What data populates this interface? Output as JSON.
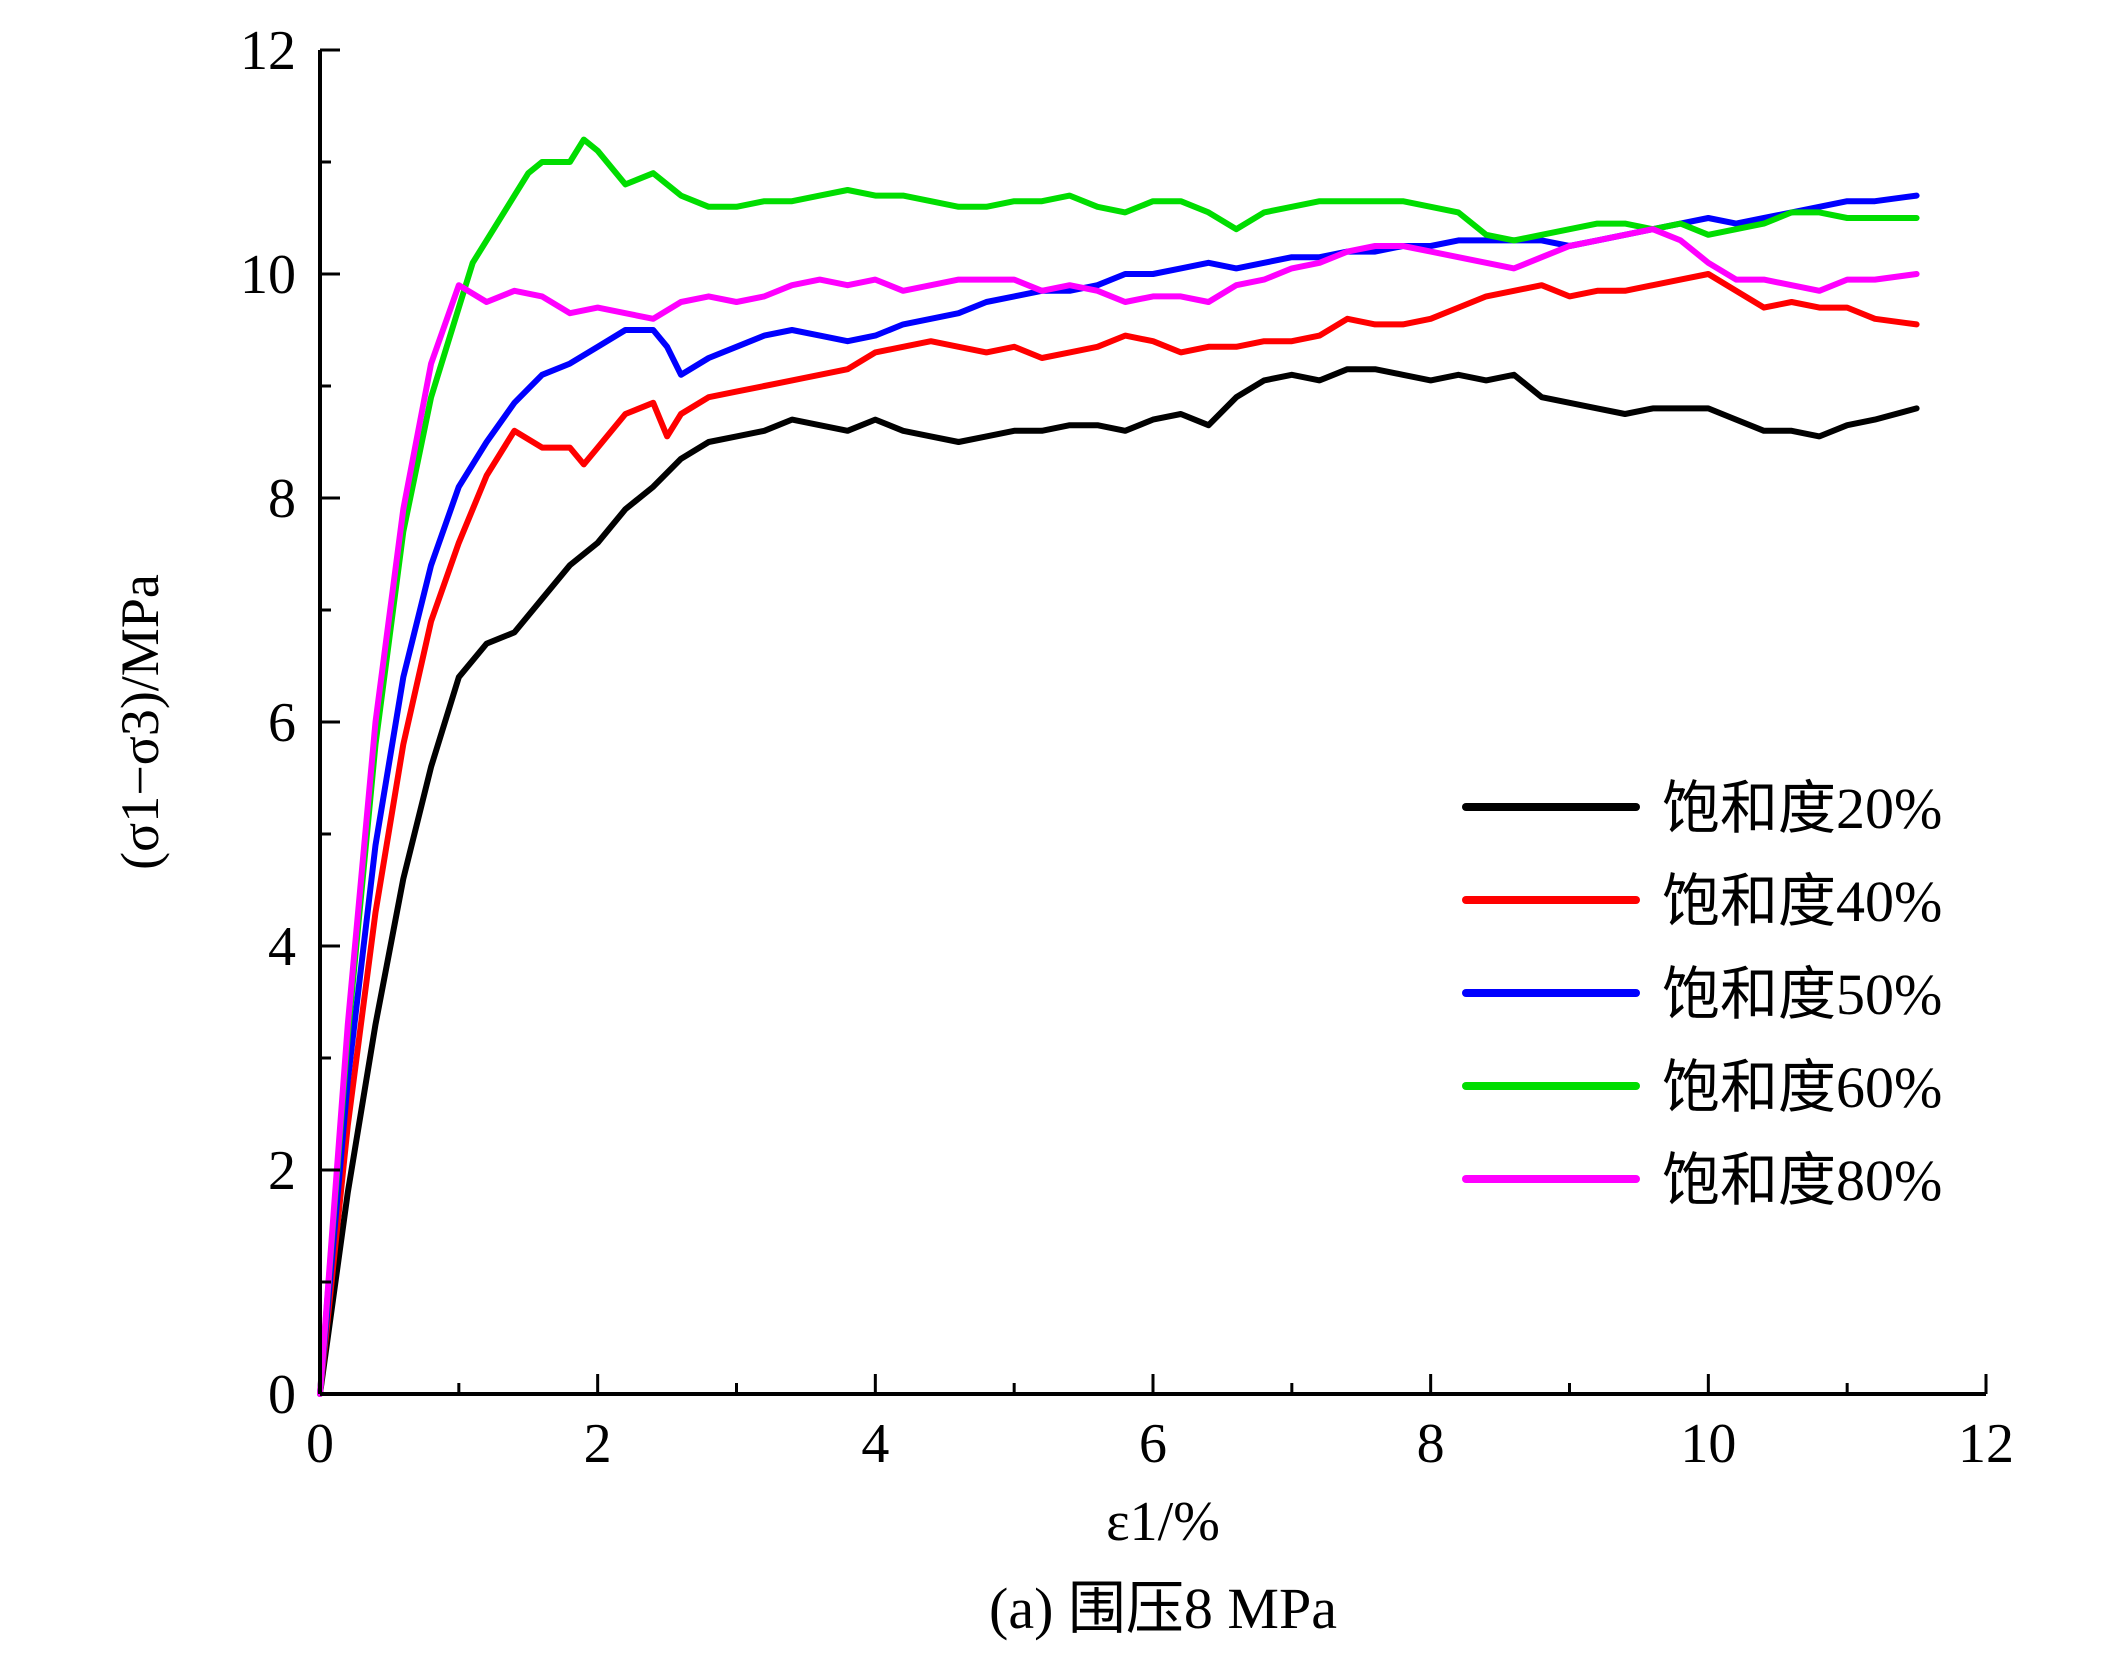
{
  "caption": "(a) 围压8 MPa",
  "chart_data": {
    "type": "line",
    "xlabel": "ε1/%",
    "ylabel": "(σ1−σ3)/MPa",
    "xlim": [
      0,
      12
    ],
    "ylim": [
      0,
      12
    ],
    "xticks": [
      0,
      2,
      4,
      6,
      8,
      10,
      12
    ],
    "yticks": [
      0,
      2,
      4,
      6,
      8,
      10,
      12
    ],
    "grid": false,
    "legend_position": "right",
    "series": [
      {
        "name": "饱和度20%",
        "color": "#000000",
        "x": [
          0,
          0.2,
          0.4,
          0.6,
          0.8,
          1.0,
          1.2,
          1.4,
          1.6,
          1.8,
          2.0,
          2.2,
          2.4,
          2.6,
          2.8,
          3.0,
          3.2,
          3.4,
          3.6,
          3.8,
          4.0,
          4.2,
          4.4,
          4.6,
          4.8,
          5.0,
          5.2,
          5.4,
          5.6,
          5.8,
          6.0,
          6.2,
          6.4,
          6.6,
          6.8,
          7.0,
          7.2,
          7.4,
          7.6,
          7.8,
          8.0,
          8.2,
          8.4,
          8.6,
          8.8,
          9.0,
          9.2,
          9.4,
          9.6,
          9.8,
          10.0,
          10.2,
          10.4,
          10.6,
          10.8,
          11.0,
          11.2,
          11.5
        ],
        "y": [
          0,
          1.8,
          3.3,
          4.6,
          5.6,
          6.4,
          6.7,
          6.8,
          7.1,
          7.4,
          7.6,
          7.9,
          8.1,
          8.35,
          8.5,
          8.55,
          8.6,
          8.7,
          8.65,
          8.6,
          8.7,
          8.6,
          8.55,
          8.5,
          8.55,
          8.6,
          8.6,
          8.65,
          8.65,
          8.6,
          8.7,
          8.75,
          8.65,
          8.9,
          9.05,
          9.1,
          9.05,
          9.15,
          9.15,
          9.1,
          9.05,
          9.1,
          9.05,
          9.1,
          8.9,
          8.85,
          8.8,
          8.75,
          8.8,
          8.8,
          8.8,
          8.7,
          8.6,
          8.6,
          8.55,
          8.65,
          8.7,
          8.8
        ]
      },
      {
        "name": "饱和度40%",
        "color": "#ff0000",
        "x": [
          0,
          0.2,
          0.4,
          0.6,
          0.8,
          1.0,
          1.2,
          1.4,
          1.6,
          1.8,
          1.9,
          2.0,
          2.2,
          2.4,
          2.5,
          2.6,
          2.8,
          3.0,
          3.2,
          3.4,
          3.6,
          3.8,
          4.0,
          4.2,
          4.4,
          4.6,
          4.8,
          5.0,
          5.2,
          5.4,
          5.6,
          5.8,
          6.0,
          6.2,
          6.4,
          6.6,
          6.8,
          7.0,
          7.2,
          7.4,
          7.6,
          7.8,
          8.0,
          8.2,
          8.4,
          8.6,
          8.8,
          9.0,
          9.2,
          9.4,
          9.6,
          9.8,
          10.0,
          10.2,
          10.4,
          10.6,
          10.8,
          11.0,
          11.2,
          11.5
        ],
        "y": [
          0,
          2.4,
          4.3,
          5.8,
          6.9,
          7.6,
          8.2,
          8.6,
          8.45,
          8.45,
          8.3,
          8.45,
          8.75,
          8.85,
          8.55,
          8.75,
          8.9,
          8.95,
          9.0,
          9.05,
          9.1,
          9.15,
          9.3,
          9.35,
          9.4,
          9.35,
          9.3,
          9.35,
          9.25,
          9.3,
          9.35,
          9.45,
          9.4,
          9.3,
          9.35,
          9.35,
          9.4,
          9.4,
          9.45,
          9.6,
          9.55,
          9.55,
          9.6,
          9.7,
          9.8,
          9.85,
          9.9,
          9.8,
          9.85,
          9.85,
          9.9,
          9.95,
          10.0,
          9.85,
          9.7,
          9.75,
          9.7,
          9.7,
          9.6,
          9.55
        ]
      },
      {
        "name": "饱和度50%",
        "color": "#0000ff",
        "x": [
          0,
          0.2,
          0.4,
          0.6,
          0.8,
          1.0,
          1.2,
          1.4,
          1.6,
          1.8,
          2.0,
          2.2,
          2.4,
          2.5,
          2.6,
          2.8,
          3.0,
          3.2,
          3.4,
          3.6,
          3.8,
          4.0,
          4.2,
          4.4,
          4.6,
          4.8,
          5.0,
          5.2,
          5.4,
          5.6,
          5.8,
          6.0,
          6.2,
          6.4,
          6.6,
          6.8,
          7.0,
          7.2,
          7.4,
          7.6,
          7.8,
          8.0,
          8.2,
          8.4,
          8.6,
          8.8,
          9.0,
          9.2,
          9.4,
          9.6,
          9.8,
          10.0,
          10.2,
          10.4,
          10.6,
          10.8,
          11.0,
          11.2,
          11.5
        ],
        "y": [
          0,
          2.8,
          4.9,
          6.4,
          7.4,
          8.1,
          8.5,
          8.85,
          9.1,
          9.2,
          9.35,
          9.5,
          9.5,
          9.35,
          9.1,
          9.25,
          9.35,
          9.45,
          9.5,
          9.45,
          9.4,
          9.45,
          9.55,
          9.6,
          9.65,
          9.75,
          9.8,
          9.85,
          9.85,
          9.9,
          10.0,
          10.0,
          10.05,
          10.1,
          10.05,
          10.1,
          10.15,
          10.15,
          10.2,
          10.2,
          10.25,
          10.25,
          10.3,
          10.3,
          10.3,
          10.3,
          10.25,
          10.3,
          10.35,
          10.4,
          10.45,
          10.5,
          10.45,
          10.5,
          10.55,
          10.6,
          10.65,
          10.65,
          10.7
        ]
      },
      {
        "name": "饱和度60%",
        "color": "#00dd00",
        "x": [
          0,
          0.2,
          0.4,
          0.6,
          0.8,
          1.0,
          1.1,
          1.2,
          1.4,
          1.5,
          1.6,
          1.8,
          1.9,
          2.0,
          2.2,
          2.4,
          2.6,
          2.8,
          3.0,
          3.2,
          3.4,
          3.6,
          3.8,
          4.0,
          4.2,
          4.4,
          4.6,
          4.8,
          5.0,
          5.2,
          5.4,
          5.6,
          5.8,
          6.0,
          6.2,
          6.4,
          6.6,
          6.8,
          7.0,
          7.2,
          7.4,
          7.6,
          7.8,
          8.0,
          8.2,
          8.4,
          8.6,
          8.8,
          9.0,
          9.2,
          9.4,
          9.6,
          9.8,
          10.0,
          10.2,
          10.4,
          10.6,
          10.8,
          11.0,
          11.2,
          11.5
        ],
        "y": [
          0,
          3.2,
          5.8,
          7.7,
          8.9,
          9.7,
          10.1,
          10.3,
          10.7,
          10.9,
          11.0,
          11.0,
          11.2,
          11.1,
          10.8,
          10.9,
          10.7,
          10.6,
          10.6,
          10.65,
          10.65,
          10.7,
          10.75,
          10.7,
          10.7,
          10.65,
          10.6,
          10.6,
          10.65,
          10.65,
          10.7,
          10.6,
          10.55,
          10.65,
          10.65,
          10.55,
          10.4,
          10.55,
          10.6,
          10.65,
          10.65,
          10.65,
          10.65,
          10.6,
          10.55,
          10.35,
          10.3,
          10.35,
          10.4,
          10.45,
          10.45,
          10.4,
          10.45,
          10.35,
          10.4,
          10.45,
          10.55,
          10.55,
          10.5,
          10.5,
          10.5
        ]
      },
      {
        "name": "饱和度80%",
        "color": "#ff00ff",
        "x": [
          0,
          0.2,
          0.4,
          0.6,
          0.8,
          1.0,
          1.2,
          1.4,
          1.6,
          1.8,
          2.0,
          2.2,
          2.4,
          2.6,
          2.8,
          3.0,
          3.2,
          3.4,
          3.6,
          3.8,
          4.0,
          4.2,
          4.4,
          4.6,
          4.8,
          5.0,
          5.2,
          5.4,
          5.6,
          5.8,
          6.0,
          6.2,
          6.4,
          6.6,
          6.8,
          7.0,
          7.2,
          7.4,
          7.6,
          7.8,
          8.0,
          8.2,
          8.4,
          8.6,
          8.8,
          9.0,
          9.2,
          9.4,
          9.6,
          9.8,
          10.0,
          10.2,
          10.4,
          10.6,
          10.8,
          11.0,
          11.2,
          11.5
        ],
        "y": [
          0,
          3.3,
          6.0,
          7.9,
          9.2,
          9.9,
          9.75,
          9.85,
          9.8,
          9.65,
          9.7,
          9.65,
          9.6,
          9.75,
          9.8,
          9.75,
          9.8,
          9.9,
          9.95,
          9.9,
          9.95,
          9.85,
          9.9,
          9.95,
          9.95,
          9.95,
          9.85,
          9.9,
          9.85,
          9.75,
          9.8,
          9.8,
          9.75,
          9.9,
          9.95,
          10.05,
          10.1,
          10.2,
          10.25,
          10.25,
          10.2,
          10.15,
          10.1,
          10.05,
          10.15,
          10.25,
          10.3,
          10.35,
          10.4,
          10.3,
          10.1,
          9.95,
          9.95,
          9.9,
          9.85,
          9.95,
          9.95,
          10.0
        ]
      }
    ]
  }
}
